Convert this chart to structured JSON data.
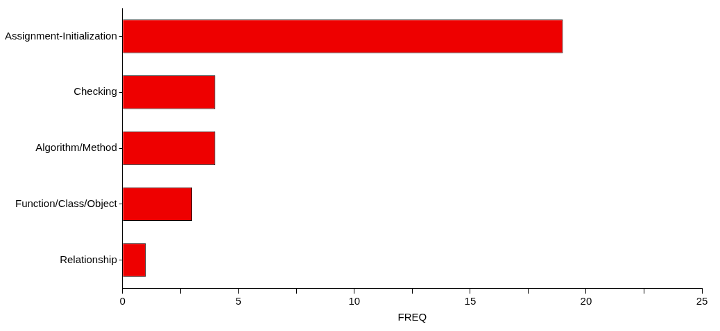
{
  "chart_data": {
    "type": "bar",
    "orientation": "horizontal",
    "xlabel": "FREQ",
    "categories": [
      "Assignment-Initialization",
      "Checking",
      "Algorithm/Method",
      "Function/Class/Object",
      "Relationship"
    ],
    "values": [
      19,
      4,
      4,
      3,
      1
    ],
    "color": "#ee0000",
    "xlim": [
      0,
      25
    ],
    "xticks": [
      0,
      {
        "value": 2.5,
        "label": null
      },
      5,
      {
        "value": 7.5,
        "label": null
      },
      10,
      {
        "value": 12.5,
        "label": null
      },
      15,
      {
        "value": 17.5,
        "label": null
      },
      20,
      {
        "value": 22.5,
        "label": null
      },
      25
    ],
    "grid": false,
    "legend": false
  }
}
